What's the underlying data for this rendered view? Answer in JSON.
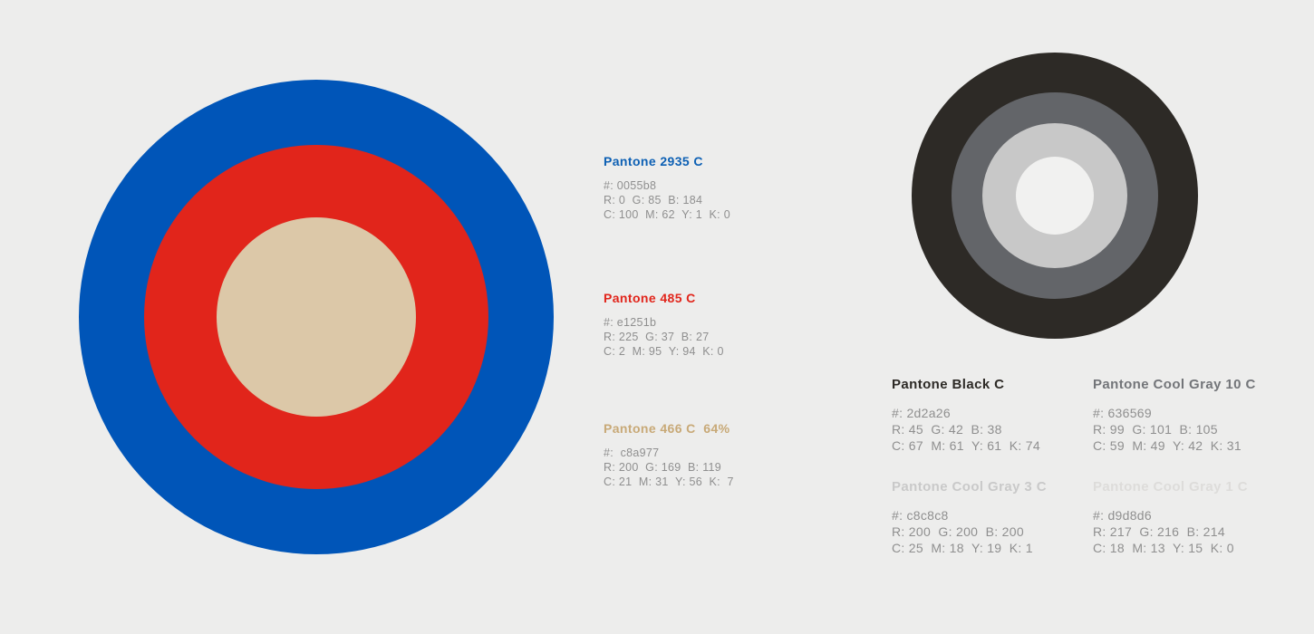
{
  "page": {
    "background": "#ededec"
  },
  "primary_palette": {
    "rings": [
      {
        "pantone": "Pantone 2935 C",
        "color": "#0055b8"
      },
      {
        "pantone": "Pantone 485 C",
        "color": "#e1251b"
      },
      {
        "pantone": "Pantone 466 C 64%",
        "color": "#dcc8a8"
      }
    ],
    "swatches": [
      {
        "title": "Pantone 2935 C",
        "title_color": "#0d60b4",
        "hex": "#: 0055b8",
        "rgb": "R: 0  G: 85  B: 184",
        "cmyk": "C: 100  M: 62  Y: 1  K: 0"
      },
      {
        "title": "Pantone 485 C",
        "title_color": "#e1251b",
        "hex": "#: e1251b",
        "rgb": "R: 225  G: 37  B: 27",
        "cmyk": "C: 2  M: 95  Y: 94  K: 0"
      },
      {
        "title": "Pantone 466 C  64%",
        "title_color": "#c8a977",
        "hex": "#:  c8a977",
        "rgb": "R: 200  G: 169  B: 119",
        "cmyk": "C: 21  M: 31  Y: 56  K:  7"
      }
    ]
  },
  "grayscale_palette": {
    "rings": [
      {
        "pantone": "Pantone Black C",
        "color": "#2d2a26"
      },
      {
        "pantone": "Pantone Cool Gray 10 C",
        "color": "#636569"
      },
      {
        "pantone": "Pantone Cool Gray 3 C",
        "color": "#c8c8c8"
      },
      {
        "pantone": "Pantone Cool Gray 1 C",
        "color": "#f1f1f0"
      }
    ],
    "swatches": [
      {
        "title": "Pantone Black C",
        "title_color": "#2d2a26",
        "hex": "#: 2d2a26",
        "rgb": "R: 45  G: 42  B: 38",
        "cmyk": "C: 67  M: 61  Y: 61  K: 74"
      },
      {
        "title": "Pantone Cool Gray 10 C",
        "title_color": "#737579",
        "hex": "#: 636569",
        "rgb": "R: 99  G: 101  B: 105",
        "cmyk": "C: 59  M: 49  Y: 42  K: 31"
      },
      {
        "title": "Pantone Cool Gray 3 C",
        "title_color": "#c9c9c9",
        "hex": "#: c8c8c8",
        "rgb": "R: 200  G: 200  B: 200",
        "cmyk": "C: 25  M: 18  Y: 19  K: 1"
      },
      {
        "title": "Pantone Cool Gray 1 C",
        "title_color": "#dddcda",
        "hex": "#: d9d8d6",
        "rgb": "R: 217  G: 216  B: 214",
        "cmyk": "C: 18  M: 13  Y: 15  K: 0"
      }
    ]
  }
}
